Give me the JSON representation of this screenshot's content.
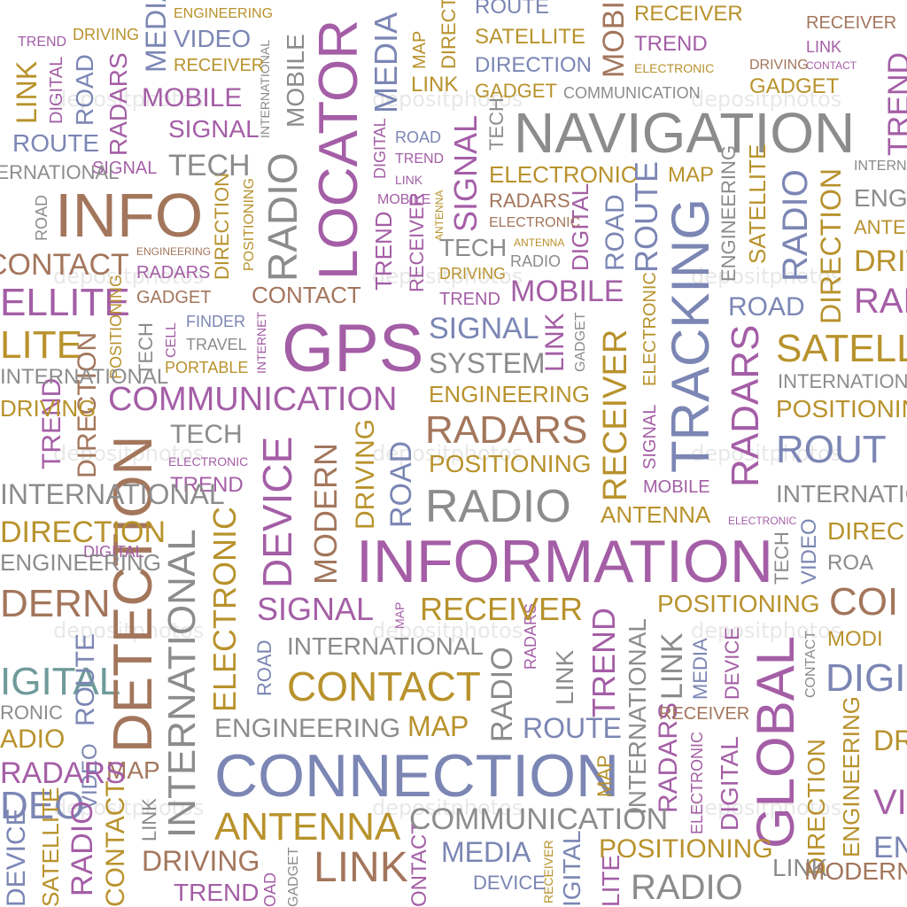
{
  "palette": {
    "purple": "#a45ea6",
    "blue": "#7b86b4",
    "gold": "#b8922c",
    "gray": "#8c8c8c",
    "brown": "#a3765c",
    "teal": "#6f9a9a"
  },
  "words": [
    "NAVIGATION",
    "GPS",
    "INFO",
    "LOCATOR",
    "TRACKING",
    "INFORMATION",
    "CONNECTION",
    "DETECTION",
    "GLOBAL",
    "RADIO",
    "COMMUNICATION",
    "ROUTE",
    "SATELLITE",
    "DEVICE",
    "RADARS",
    "CONTACT",
    "ANTENNA",
    "SIGNAL",
    "RECEIVER",
    "ENGINEERING",
    "POSITIONING",
    "MOBILE",
    "SYSTEM",
    "MEDIA",
    "LINK",
    "MODERN",
    "TREND",
    "ELECTRONIC",
    "DIGITAL",
    "DIRECTION",
    "INTERNATIONAL",
    "MAP",
    "ROAD",
    "TECH",
    "DRIVING",
    "VIDEO",
    "FINDER",
    "TRAVEL",
    "PORTABLE",
    "GADGET",
    "CELL",
    "INTERNET",
    "SATELL",
    "ROUT",
    "DIREC",
    "MODI",
    "ROA",
    "ANTEN",
    "ENGINE",
    "DRIVI",
    "RAD",
    "COI",
    "DIGI",
    "TREN",
    "VI",
    "DEO",
    "DERN",
    "LITE",
    "ELLITE",
    "RONIC",
    "ADIO",
    "ONTACT",
    "IGITAL",
    "OAD",
    "REND",
    "GNAL",
    "ENGINEERING"
  ],
  "watermark": "depositphotos"
}
